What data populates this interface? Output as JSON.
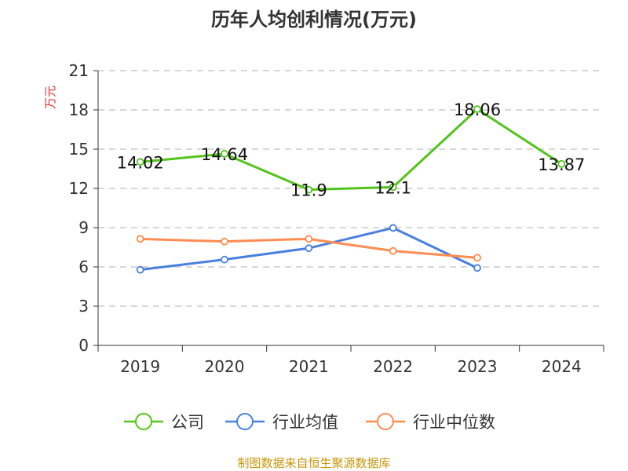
{
  "chart_data": {
    "type": "line",
    "title": "历年人均创利情况(万元)",
    "ylabel": "万元",
    "xlabel": "",
    "categories": [
      "2019",
      "2020",
      "2021",
      "2022",
      "2023",
      "2024"
    ],
    "ylim": [
      0,
      21
    ],
    "yticks": [
      0,
      3,
      6,
      9,
      12,
      15,
      18,
      21
    ],
    "grid": true,
    "legend_position": "bottom",
    "series": [
      {
        "name": "公司",
        "color": "#52c41a",
        "values": [
          14.02,
          14.64,
          11.9,
          12.1,
          18.06,
          13.87
        ],
        "labels": [
          "14.02",
          "14.64",
          "11.9",
          "12.1",
          "18.06",
          "13.87"
        ]
      },
      {
        "name": "行业均值",
        "color": "#4a7fe0",
        "values": [
          5.78,
          6.56,
          7.43,
          8.98,
          5.92,
          null
        ]
      },
      {
        "name": "行业中位数",
        "color": "#ff8c50",
        "values": [
          8.14,
          7.94,
          8.14,
          7.22,
          6.7,
          null
        ]
      }
    ]
  },
  "source": "制图数据来自恒生聚源数据库"
}
